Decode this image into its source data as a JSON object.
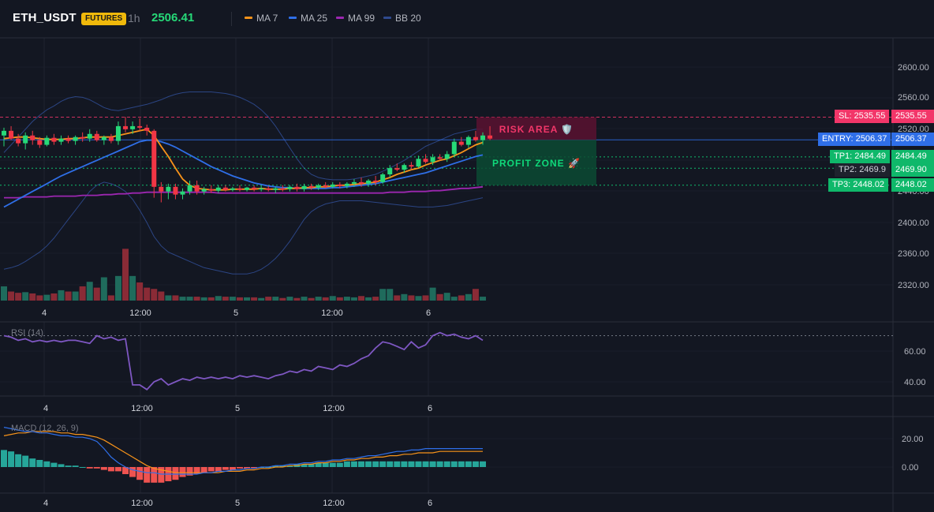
{
  "header": {
    "symbol": "ETH_USDT",
    "badge": "FUTURES",
    "timeframe": "1h",
    "price": "2506.41",
    "legend": [
      {
        "label": "MA 7",
        "color": "#f7931a"
      },
      {
        "label": "MA 25",
        "color": "#2f6fe8"
      },
      {
        "label": "MA 99",
        "color": "#9c27b0"
      },
      {
        "label": "BB 20",
        "color": "#2f4a8f"
      }
    ]
  },
  "zones": {
    "risk_label": "RISK AREA 🛡️",
    "profit_label": "PROFIT ZONE 🚀"
  },
  "levels": {
    "sl": {
      "tag": "SL: 2535.55",
      "price_label": "2535.55",
      "value": 2535.55
    },
    "entry": {
      "tag": "ENTRY: 2506.37",
      "price_label": "2506.37",
      "value": 2506.37
    },
    "tp1": {
      "tag": "TP1: 2484.49",
      "price_label": "2484.49",
      "value": 2484.49
    },
    "tp2": {
      "tag": "TP2: 2469.9",
      "price_label": "2469.90",
      "value": 2469.9
    },
    "tp3": {
      "tag": "TP3: 2448.02",
      "price_label": "2448.02",
      "value": 2448.02
    }
  },
  "price_axis": [
    "2600.00",
    "2560.00",
    "2520.00",
    "2400.00",
    "2360.00",
    "2320.00"
  ],
  "price_axis_partial": "2440.00",
  "time_axis": [
    "4",
    "12:00",
    "5",
    "12:00",
    "6"
  ],
  "rsi": {
    "label": "RSI (14)",
    "axis": [
      "60.00",
      "40.00"
    ]
  },
  "macd": {
    "label": "MACD (12, 26, 9)",
    "axis": [
      "20.00",
      "0.00"
    ]
  },
  "colors": {
    "up": "#26d978",
    "down": "#f23645",
    "sl": "#f23669",
    "entry": "#2f6fe8",
    "tp": "#0fd97a"
  },
  "chart_data": {
    "type": "candlestick",
    "price_range": [
      2300,
      2620
    ],
    "candles": [
      {
        "o": 2512,
        "h": 2522,
        "l": 2498,
        "c": 2518
      },
      {
        "o": 2518,
        "h": 2524,
        "l": 2506,
        "c": 2508
      },
      {
        "o": 2508,
        "h": 2514,
        "l": 2498,
        "c": 2502
      },
      {
        "o": 2502,
        "h": 2516,
        "l": 2494,
        "c": 2512
      },
      {
        "o": 2512,
        "h": 2518,
        "l": 2500,
        "c": 2506
      },
      {
        "o": 2506,
        "h": 2510,
        "l": 2496,
        "c": 2500
      },
      {
        "o": 2500,
        "h": 2512,
        "l": 2498,
        "c": 2509
      },
      {
        "o": 2509,
        "h": 2514,
        "l": 2500,
        "c": 2504
      },
      {
        "o": 2504,
        "h": 2512,
        "l": 2500,
        "c": 2508
      },
      {
        "o": 2508,
        "h": 2512,
        "l": 2502,
        "c": 2505
      },
      {
        "o": 2505,
        "h": 2512,
        "l": 2500,
        "c": 2510
      },
      {
        "o": 2510,
        "h": 2516,
        "l": 2504,
        "c": 2508
      },
      {
        "o": 2508,
        "h": 2520,
        "l": 2504,
        "c": 2514
      },
      {
        "o": 2514,
        "h": 2518,
        "l": 2504,
        "c": 2506
      },
      {
        "o": 2506,
        "h": 2512,
        "l": 2500,
        "c": 2510
      },
      {
        "o": 2510,
        "h": 2514,
        "l": 2502,
        "c": 2505
      },
      {
        "o": 2505,
        "h": 2530,
        "l": 2500,
        "c": 2524
      },
      {
        "o": 2524,
        "h": 2536,
        "l": 2516,
        "c": 2520
      },
      {
        "o": 2520,
        "h": 2530,
        "l": 2514,
        "c": 2524
      },
      {
        "o": 2524,
        "h": 2534,
        "l": 2518,
        "c": 2522
      },
      {
        "o": 2522,
        "h": 2526,
        "l": 2512,
        "c": 2518
      },
      {
        "o": 2518,
        "h": 2520,
        "l": 2432,
        "c": 2446
      },
      {
        "o": 2446,
        "h": 2452,
        "l": 2426,
        "c": 2440
      },
      {
        "o": 2440,
        "h": 2450,
        "l": 2430,
        "c": 2446
      },
      {
        "o": 2446,
        "h": 2450,
        "l": 2430,
        "c": 2436
      },
      {
        "o": 2436,
        "h": 2444,
        "l": 2430,
        "c": 2440
      },
      {
        "o": 2440,
        "h": 2454,
        "l": 2436,
        "c": 2448
      },
      {
        "o": 2448,
        "h": 2454,
        "l": 2436,
        "c": 2440
      },
      {
        "o": 2440,
        "h": 2446,
        "l": 2436,
        "c": 2443
      },
      {
        "o": 2443,
        "h": 2448,
        "l": 2438,
        "c": 2441
      },
      {
        "o": 2441,
        "h": 2448,
        "l": 2438,
        "c": 2445
      },
      {
        "o": 2445,
        "h": 2448,
        "l": 2440,
        "c": 2442
      },
      {
        "o": 2442,
        "h": 2446,
        "l": 2440,
        "c": 2444
      },
      {
        "o": 2444,
        "h": 2448,
        "l": 2440,
        "c": 2442
      },
      {
        "o": 2442,
        "h": 2446,
        "l": 2440,
        "c": 2445
      },
      {
        "o": 2445,
        "h": 2448,
        "l": 2440,
        "c": 2443
      },
      {
        "o": 2443,
        "h": 2448,
        "l": 2440,
        "c": 2444
      },
      {
        "o": 2444,
        "h": 2447,
        "l": 2440,
        "c": 2442
      },
      {
        "o": 2442,
        "h": 2446,
        "l": 2438,
        "c": 2444
      },
      {
        "o": 2444,
        "h": 2448,
        "l": 2440,
        "c": 2443
      },
      {
        "o": 2443,
        "h": 2448,
        "l": 2440,
        "c": 2446
      },
      {
        "o": 2446,
        "h": 2450,
        "l": 2440,
        "c": 2443
      },
      {
        "o": 2443,
        "h": 2450,
        "l": 2440,
        "c": 2447
      },
      {
        "o": 2447,
        "h": 2450,
        "l": 2442,
        "c": 2445
      },
      {
        "o": 2445,
        "h": 2450,
        "l": 2442,
        "c": 2448
      },
      {
        "o": 2448,
        "h": 2452,
        "l": 2444,
        "c": 2446
      },
      {
        "o": 2446,
        "h": 2452,
        "l": 2444,
        "c": 2449
      },
      {
        "o": 2449,
        "h": 2452,
        "l": 2444,
        "c": 2447
      },
      {
        "o": 2447,
        "h": 2452,
        "l": 2444,
        "c": 2450
      },
      {
        "o": 2450,
        "h": 2456,
        "l": 2446,
        "c": 2452
      },
      {
        "o": 2452,
        "h": 2458,
        "l": 2446,
        "c": 2450
      },
      {
        "o": 2450,
        "h": 2456,
        "l": 2446,
        "c": 2454
      },
      {
        "o": 2454,
        "h": 2460,
        "l": 2448,
        "c": 2452
      },
      {
        "o": 2452,
        "h": 2464,
        "l": 2450,
        "c": 2462
      },
      {
        "o": 2462,
        "h": 2474,
        "l": 2458,
        "c": 2470
      },
      {
        "o": 2470,
        "h": 2476,
        "l": 2466,
        "c": 2468
      },
      {
        "o": 2468,
        "h": 2476,
        "l": 2464,
        "c": 2474
      },
      {
        "o": 2474,
        "h": 2478,
        "l": 2468,
        "c": 2472
      },
      {
        "o": 2472,
        "h": 2486,
        "l": 2470,
        "c": 2482
      },
      {
        "o": 2482,
        "h": 2488,
        "l": 2476,
        "c": 2478
      },
      {
        "o": 2478,
        "h": 2488,
        "l": 2474,
        "c": 2484
      },
      {
        "o": 2484,
        "h": 2488,
        "l": 2480,
        "c": 2482
      },
      {
        "o": 2482,
        "h": 2492,
        "l": 2478,
        "c": 2488
      },
      {
        "o": 2488,
        "h": 2508,
        "l": 2484,
        "c": 2504
      },
      {
        "o": 2504,
        "h": 2510,
        "l": 2498,
        "c": 2500
      },
      {
        "o": 2500,
        "h": 2512,
        "l": 2496,
        "c": 2510
      },
      {
        "o": 2510,
        "h": 2518,
        "l": 2504,
        "c": 2506
      },
      {
        "o": 2506,
        "h": 2516,
        "l": 2500,
        "c": 2512
      },
      {
        "o": 2512,
        "h": 2524,
        "l": 2506,
        "c": 2508
      }
    ],
    "volume": [
      22,
      14,
      12,
      13,
      11,
      8,
      9,
      11,
      16,
      14,
      14,
      22,
      29,
      20,
      36,
      8,
      38,
      80,
      38,
      28,
      20,
      18,
      14,
      8,
      8,
      6,
      6,
      6,
      5,
      5,
      7,
      6,
      6,
      5,
      5,
      5,
      4,
      6,
      6,
      4,
      6,
      4,
      6,
      4,
      6,
      5,
      7,
      5,
      6,
      5,
      7,
      5,
      6,
      18,
      18,
      8,
      10,
      8,
      7,
      8,
      20,
      10,
      12,
      6,
      8,
      10,
      18,
      6
    ],
    "ma7": [
      2508,
      2509,
      2510,
      2510,
      2509,
      2508,
      2507,
      2507,
      2507,
      2508,
      2508,
      2509,
      2510,
      2510,
      2510,
      2510,
      2512,
      2514,
      2516,
      2518,
      2520,
      2512,
      2498,
      2485,
      2470,
      2456,
      2448,
      2444,
      2443,
      2442,
      2442,
      2442,
      2443,
      2443,
      2443,
      2443,
      2444,
      2443,
      2443,
      2443,
      2444,
      2444,
      2445,
      2445,
      2446,
      2446,
      2447,
      2448,
      2448,
      2449,
      2450,
      2451,
      2452,
      2455,
      2458,
      2462,
      2465,
      2468,
      2470,
      2474,
      2477,
      2480,
      2482,
      2486,
      2490,
      2495,
      2500,
      2503
    ],
    "ma25": [
      2420,
      2425,
      2430,
      2435,
      2440,
      2445,
      2450,
      2455,
      2460,
      2464,
      2468,
      2472,
      2476,
      2480,
      2484,
      2488,
      2492,
      2496,
      2500,
      2504,
      2506,
      2506,
      2504,
      2501,
      2497,
      2492,
      2487,
      2482,
      2477,
      2472,
      2468,
      2464,
      2460,
      2457,
      2454,
      2451,
      2449,
      2447,
      2446,
      2445,
      2445,
      2444,
      2444,
      2444,
      2444,
      2444,
      2445,
      2445,
      2446,
      2447,
      2448,
      2449,
      2450,
      2452,
      2454,
      2456,
      2458,
      2460,
      2462,
      2464,
      2467,
      2470,
      2473,
      2476,
      2479,
      2482,
      2485,
      2487
    ],
    "ma99": [
      2432,
      2432,
      2432,
      2433,
      2433,
      2433,
      2433,
      2434,
      2434,
      2434,
      2434,
      2435,
      2435,
      2435,
      2436,
      2436,
      2437,
      2437,
      2438,
      2438,
      2439,
      2439,
      2439,
      2439,
      2439,
      2439,
      2439,
      2439,
      2439,
      2439,
      2438,
      2438,
      2438,
      2438,
      2438,
      2438,
      2438,
      2438,
      2438,
      2438,
      2438,
      2438,
      2438,
      2438,
      2438,
      2438,
      2438,
      2438,
      2438,
      2438,
      2438,
      2438,
      2438,
      2438,
      2439,
      2439,
      2439,
      2440,
      2440,
      2440,
      2441,
      2441,
      2442,
      2443,
      2444,
      2444,
      2445,
      2446
    ],
    "bb_upper": [
      2490,
      2500,
      2510,
      2520,
      2530,
      2538,
      2545,
      2550,
      2556,
      2560,
      2562,
      2561,
      2558,
      2553,
      2548,
      2545,
      2544,
      2546,
      2548,
      2550,
      2552,
      2555,
      2558,
      2562,
      2565,
      2567,
      2568,
      2568,
      2568,
      2568,
      2567,
      2566,
      2564,
      2561,
      2557,
      2552,
      2545,
      2536,
      2524,
      2510,
      2496,
      2482,
      2470,
      2462,
      2458,
      2456,
      2455,
      2455,
      2455,
      2456,
      2458,
      2460,
      2462,
      2466,
      2470,
      2475,
      2480,
      2486,
      2492,
      2498,
      2502,
      2506,
      2510,
      2514,
      2516,
      2518,
      2520,
      2520
    ],
    "bb_lower": [
      2340,
      2342,
      2345,
      2350,
      2356,
      2362,
      2370,
      2380,
      2392,
      2404,
      2416,
      2428,
      2440,
      2448,
      2452,
      2450,
      2446,
      2440,
      2430,
      2416,
      2400,
      2382,
      2370,
      2362,
      2358,
      2354,
      2350,
      2346,
      2342,
      2340,
      2338,
      2336,
      2334,
      2334,
      2334,
      2336,
      2340,
      2346,
      2354,
      2364,
      2376,
      2390,
      2404,
      2414,
      2420,
      2424,
      2426,
      2428,
      2428,
      2428,
      2428,
      2427,
      2426,
      2425,
      2424,
      2423,
      2422,
      2421,
      2420,
      2420,
      2420,
      2421,
      2422,
      2424,
      2426,
      2428,
      2430,
      2432
    ],
    "rsi": [
      70,
      69,
      67,
      68,
      66,
      67,
      66,
      67,
      66,
      67,
      67,
      66,
      65,
      70,
      68,
      69,
      67,
      68,
      38,
      38,
      35,
      40,
      42,
      38,
      40,
      42,
      41,
      43,
      42,
      43,
      42,
      43,
      42,
      44,
      43,
      44,
      43,
      42,
      44,
      45,
      47,
      46,
      48,
      47,
      50,
      49,
      48,
      51,
      50,
      52,
      55,
      57,
      62,
      66,
      65,
      63,
      61,
      66,
      62,
      64,
      70,
      72,
      70,
      71,
      69,
      68,
      70,
      67
    ],
    "rsi_range": [
      30,
      80
    ],
    "rsi_ref": 70,
    "macd_line": [
      28,
      27,
      26,
      25,
      25,
      24,
      24,
      23,
      22,
      22,
      21,
      21,
      20,
      18,
      13,
      7,
      3,
      0,
      -2,
      -3,
      -4,
      -4,
      -5,
      -5,
      -5,
      -5,
      -5,
      -5,
      -4,
      -4,
      -3,
      -3,
      -2,
      -2,
      -1,
      -1,
      0,
      0,
      1,
      1,
      2,
      2,
      3,
      3,
      4,
      4,
      5,
      5,
      6,
      6,
      7,
      8,
      8,
      9,
      10,
      11,
      11,
      12,
      12,
      13,
      13,
      13,
      13,
      13,
      13,
      13,
      13,
      13
    ],
    "signal_line": [
      22,
      23,
      24,
      24,
      25,
      25,
      25,
      25,
      24,
      24,
      23,
      23,
      22,
      21,
      19,
      16,
      13,
      10,
      7,
      4,
      1,
      -1,
      -2,
      -3,
      -4,
      -4,
      -4,
      -4,
      -4,
      -4,
      -4,
      -3,
      -3,
      -3,
      -2,
      -2,
      -1,
      -1,
      0,
      0,
      1,
      1,
      2,
      2,
      3,
      3,
      4,
      4,
      5,
      5,
      6,
      6,
      7,
      7,
      8,
      8,
      9,
      9,
      10,
      10,
      10,
      11,
      11,
      11,
      11,
      11,
      11,
      11
    ],
    "macd_hist": [
      12,
      11,
      9,
      8,
      6,
      5,
      4,
      3,
      2,
      1,
      1,
      0,
      -1,
      -1,
      -2,
      -3,
      -3,
      -5,
      -7,
      -9,
      -11,
      -11,
      -11,
      -10,
      -9,
      -7,
      -6,
      -5,
      -4,
      -3,
      -3,
      -2,
      -2,
      -1,
      -1,
      -1,
      0,
      0,
      1,
      1,
      1,
      2,
      2,
      2,
      3,
      3,
      3,
      3,
      4,
      4,
      4,
      4,
      4,
      4,
      4,
      4,
      4,
      4,
      4,
      4,
      4,
      4,
      4,
      4,
      4,
      4,
      4,
      4
    ],
    "macd_range": [
      -14,
      30
    ]
  }
}
